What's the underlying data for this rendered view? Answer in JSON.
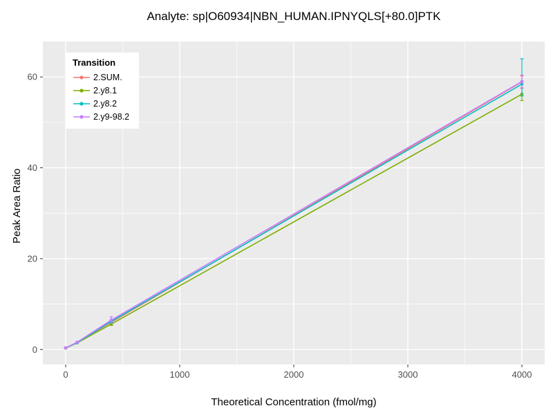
{
  "chart_data": {
    "type": "line",
    "title": "Analyte: sp|O60934|NBN_HUMAN.IPNYQLS[+80.0]PTK",
    "xlabel": "Theoretical Concentration (fmol/mg)",
    "ylabel": "Peak Area Ratio",
    "legend_title": "Transition",
    "legend_position": "top-left-inside",
    "panel_bg": "#EBEBEB",
    "grid_color": "#FFFFFF",
    "tick_label_color": "#4D4D4D",
    "xlim": [
      -200,
      4200
    ],
    "ylim": [
      -3.3,
      67.8
    ],
    "x_ticks": [
      0,
      1000,
      2000,
      3000,
      4000
    ],
    "y_ticks": [
      0,
      20,
      40,
      60
    ],
    "x_minor": [
      500,
      1500,
      2500,
      3500
    ],
    "y_minor": [
      10,
      30,
      50
    ],
    "series": [
      {
        "name": "2.SUM.",
        "color": "#F8766D",
        "points": [
          {
            "x": 0,
            "y": 0.35,
            "ymin": 0.3,
            "ymax": 0.4
          },
          {
            "x": 100,
            "y": 1.55,
            "ymin": 1.45,
            "ymax": 1.65
          },
          {
            "x": 400,
            "y": 6.0,
            "ymin": 5.7,
            "ymax": 6.3
          },
          {
            "x": 4000,
            "y": 58.9,
            "ymin": 57.5,
            "ymax": 60.2
          }
        ]
      },
      {
        "name": "2.y8.1",
        "color": "#7CAE00",
        "points": [
          {
            "x": 0,
            "y": 0.3,
            "ymin": 0.25,
            "ymax": 0.35
          },
          {
            "x": 100,
            "y": 1.45,
            "ymin": 1.35,
            "ymax": 1.55
          },
          {
            "x": 400,
            "y": 5.6,
            "ymin": 5.3,
            "ymax": 5.9
          },
          {
            "x": 4000,
            "y": 56.2,
            "ymin": 54.8,
            "ymax": 57.6
          }
        ]
      },
      {
        "name": "2.y8.2",
        "color": "#00BFC4",
        "points": [
          {
            "x": 0,
            "y": 0.35,
            "ymin": 0.3,
            "ymax": 0.4
          },
          {
            "x": 100,
            "y": 1.5,
            "ymin": 1.4,
            "ymax": 1.6
          },
          {
            "x": 400,
            "y": 6.2,
            "ymin": 5.9,
            "ymax": 6.5
          },
          {
            "x": 4000,
            "y": 58.4,
            "ymin": 55.8,
            "ymax": 64.0
          }
        ]
      },
      {
        "name": "2.y9-98.2",
        "color": "#C77CFF",
        "points": [
          {
            "x": 0,
            "y": 0.35,
            "ymin": 0.3,
            "ymax": 0.4
          },
          {
            "x": 100,
            "y": 1.6,
            "ymin": 1.5,
            "ymax": 1.7
          },
          {
            "x": 400,
            "y": 6.5,
            "ymin": 5.8,
            "ymax": 7.2
          },
          {
            "x": 4000,
            "y": 59.0,
            "ymin": 57.6,
            "ymax": 60.4
          }
        ]
      }
    ]
  }
}
